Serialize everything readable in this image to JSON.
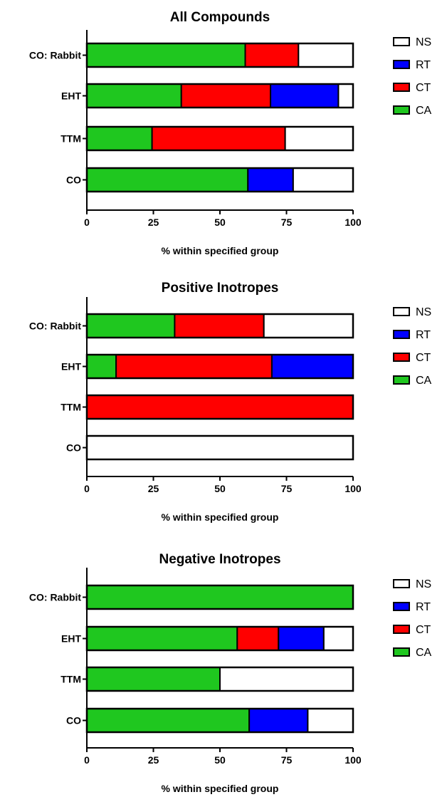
{
  "colors": {
    "CA": "#1fc71f",
    "CT": "#ff0000",
    "RT": "#0000ff",
    "NS": "#ffffff"
  },
  "chart_data": [
    {
      "type": "bar",
      "orientation": "horizontal",
      "stacked": true,
      "title": "All Compounds",
      "xlabel": "% within specified group",
      "xlim": [
        0,
        100
      ],
      "xticks": [
        "0",
        "25",
        "50",
        "75",
        "100"
      ],
      "categories": [
        "CO: Rabbit",
        "EHT",
        "TTM",
        "CO"
      ],
      "series": [
        {
          "name": "CA",
          "values": [
            59.5,
            35.5,
            24.5,
            60.5
          ]
        },
        {
          "name": "CT",
          "values": [
            20,
            33.5,
            50,
            0
          ]
        },
        {
          "name": "RT",
          "values": [
            0,
            25.5,
            0,
            17
          ]
        },
        {
          "name": "NS",
          "values": [
            20.5,
            5.5,
            25.5,
            22.5
          ]
        }
      ],
      "legend": [
        "NS",
        "RT",
        "CT",
        "CA"
      ],
      "legend_position": "right"
    },
    {
      "type": "bar",
      "orientation": "horizontal",
      "stacked": true,
      "title": "Positive Inotropes",
      "xlabel": "% within specified group",
      "xlim": [
        0,
        100
      ],
      "xticks": [
        "0",
        "25",
        "50",
        "75",
        "100"
      ],
      "categories": [
        "CO: Rabbit",
        "EHT",
        "TTM",
        "CO"
      ],
      "series": [
        {
          "name": "CA",
          "values": [
            33,
            11,
            0,
            0
          ]
        },
        {
          "name": "CT",
          "values": [
            33.5,
            58.5,
            100,
            0
          ]
        },
        {
          "name": "RT",
          "values": [
            0,
            30.5,
            0,
            0
          ]
        },
        {
          "name": "NS",
          "values": [
            33.5,
            0,
            0,
            100
          ]
        }
      ],
      "legend": [
        "NS",
        "RT",
        "CT",
        "CA"
      ],
      "legend_position": "right"
    },
    {
      "type": "bar",
      "orientation": "horizontal",
      "stacked": true,
      "title": "Negative Inotropes",
      "xlabel": "% within specified group",
      "xlim": [
        0,
        100
      ],
      "xticks": [
        "0",
        "25",
        "50",
        "75",
        "100"
      ],
      "categories": [
        "CO: Rabbit",
        "EHT",
        "TTM",
        "CO"
      ],
      "series": [
        {
          "name": "CA",
          "values": [
            100,
            56.5,
            50,
            61
          ]
        },
        {
          "name": "CT",
          "values": [
            0,
            15.5,
            0,
            0
          ]
        },
        {
          "name": "RT",
          "values": [
            0,
            17,
            0,
            22
          ]
        },
        {
          "name": "NS",
          "values": [
            0,
            11,
            50,
            17
          ]
        }
      ],
      "legend": [
        "NS",
        "RT",
        "CT",
        "CA"
      ],
      "legend_position": "right"
    }
  ]
}
